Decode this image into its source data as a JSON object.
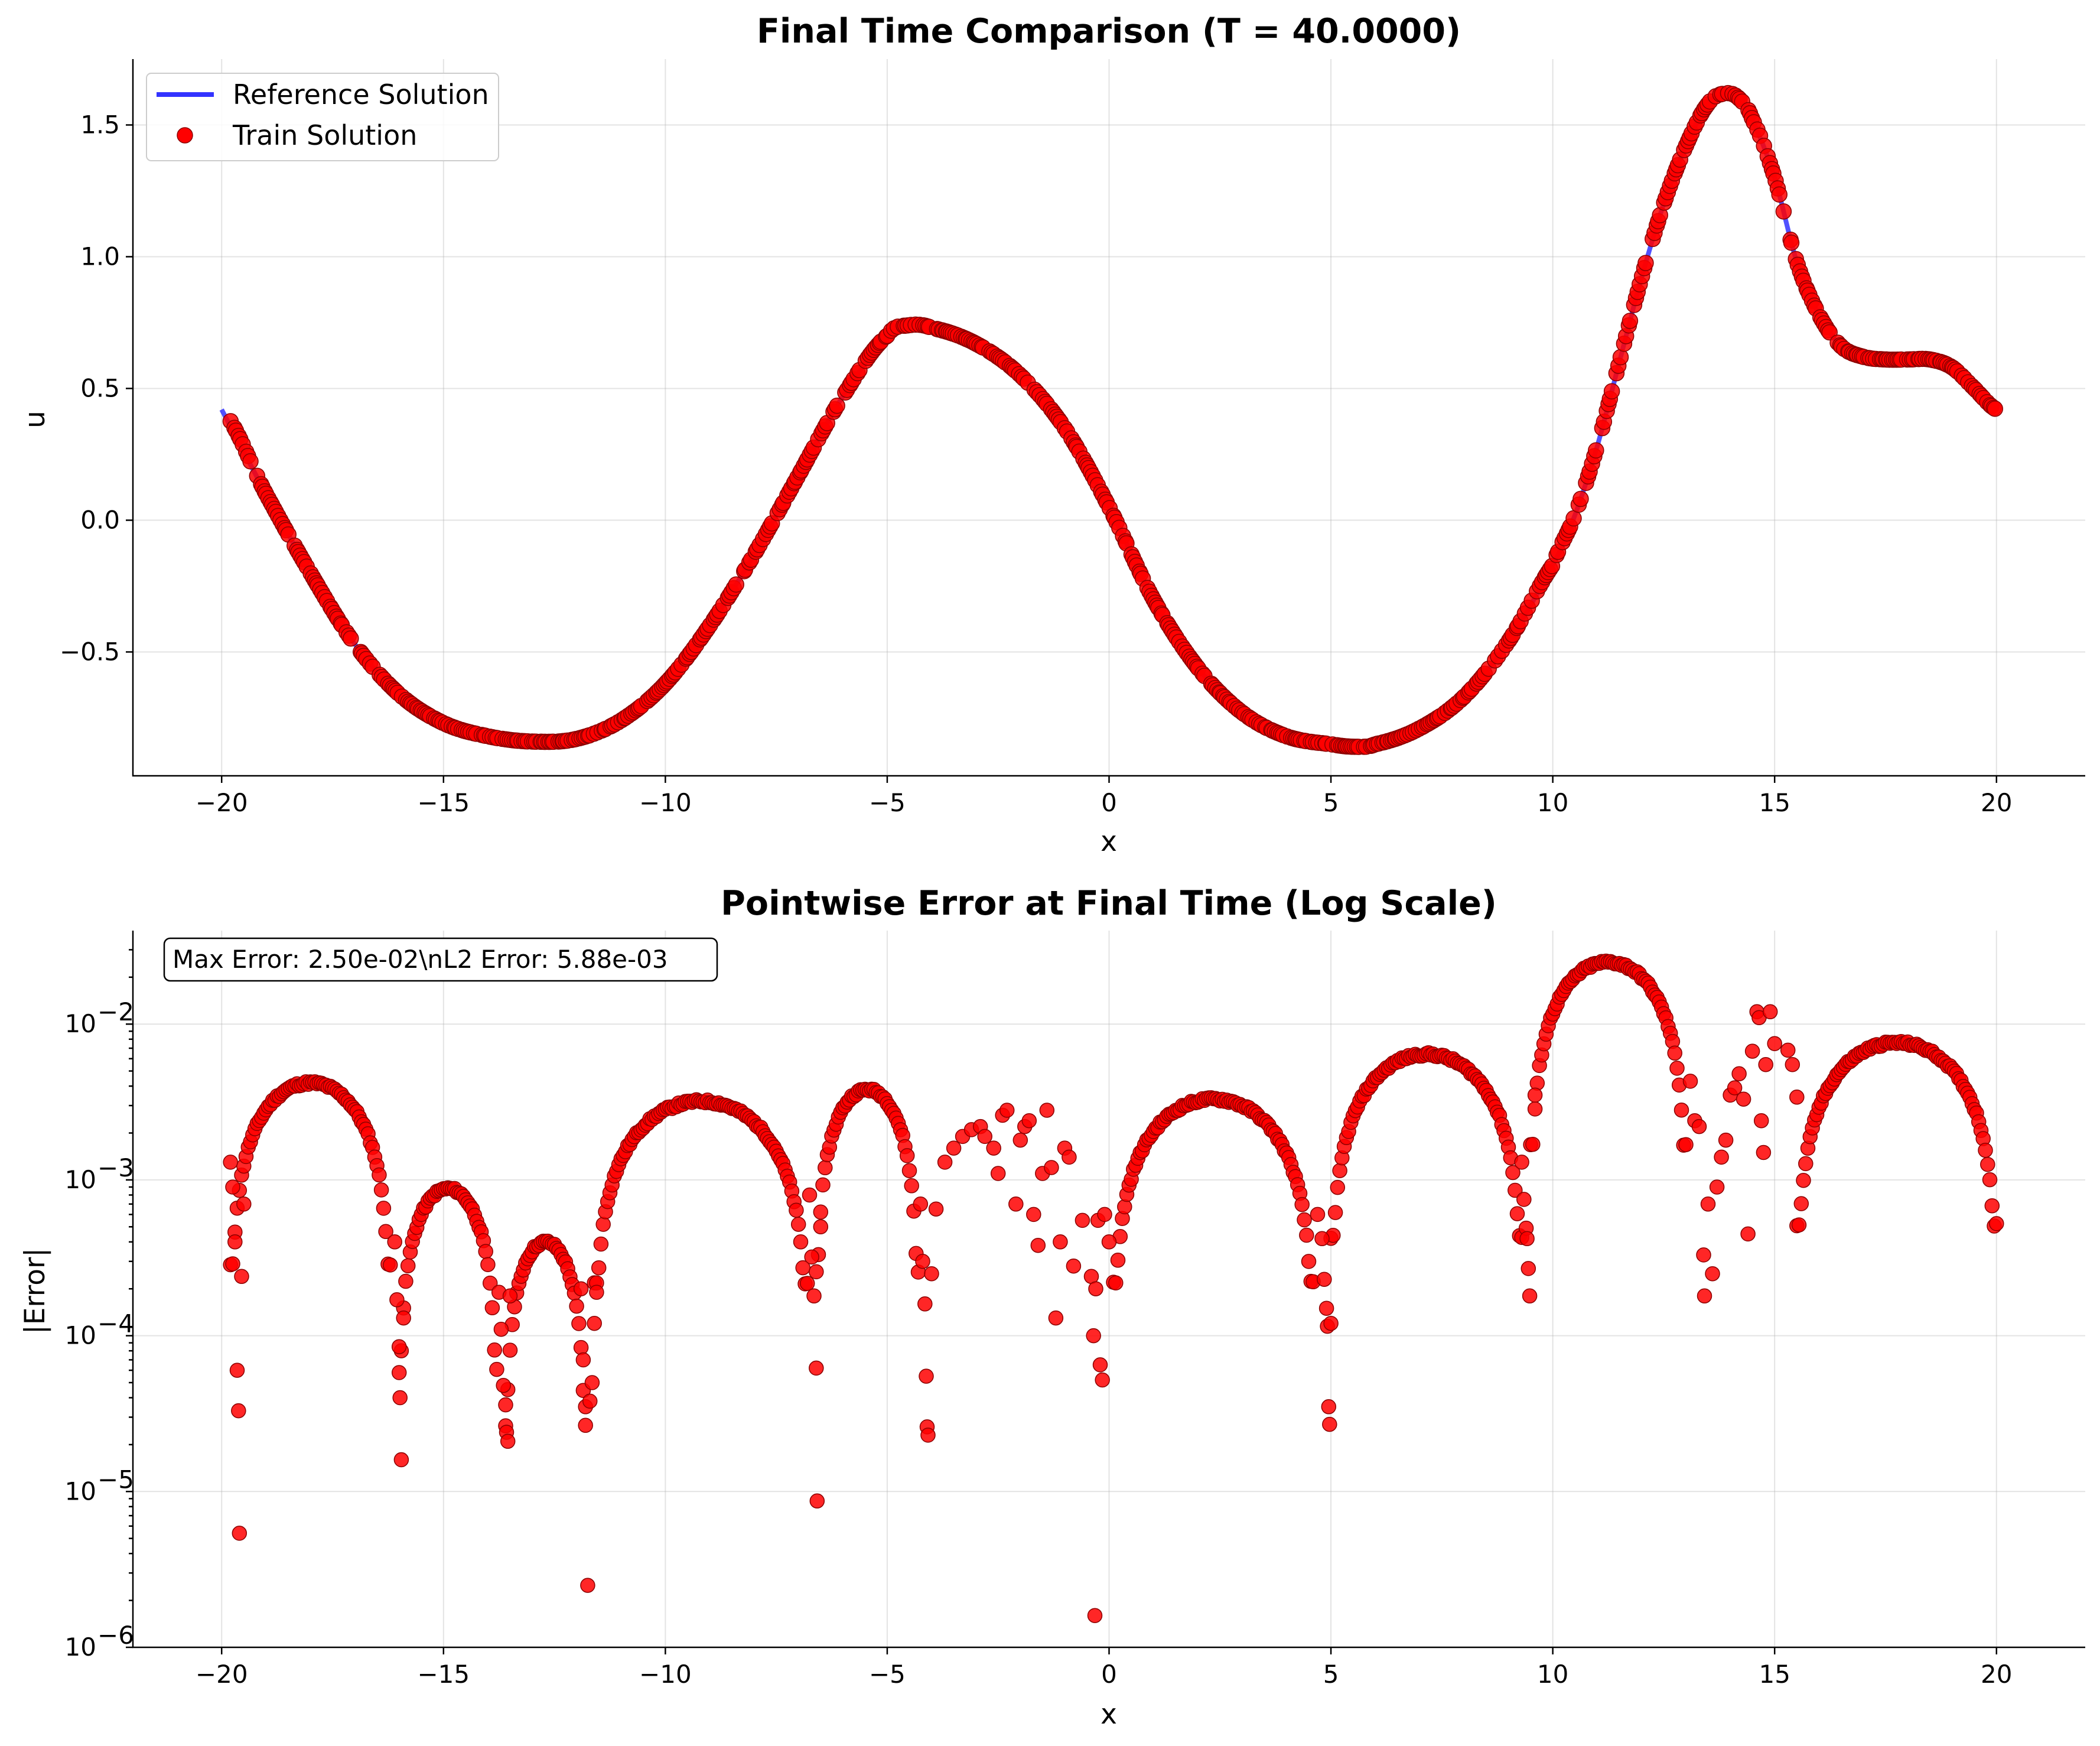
{
  "chart_data": [
    {
      "type": "line+scatter",
      "title": "Final Time Comparison (T = 40.0000)",
      "xlabel": "x",
      "ylabel": "u",
      "xlim": [
        -22,
        22
      ],
      "ylim": [
        -0.97,
        1.75
      ],
      "xticks": [
        -20,
        -15,
        -10,
        -5,
        0,
        5,
        10,
        15,
        20
      ],
      "xtick_labels": [
        "−20",
        "−15",
        "−10",
        "−5",
        "0",
        "5",
        "10",
        "15",
        "20"
      ],
      "yticks": [
        -0.5,
        0.0,
        0.5,
        1.0,
        1.5
      ],
      "ytick_labels": [
        "−0.5",
        "0.0",
        "0.5",
        "1.0",
        "1.5"
      ],
      "grid": true,
      "legend_position": "upper-left",
      "series": [
        {
          "name": "Reference Solution",
          "kind": "line",
          "color": "#3333ff",
          "x": [
            -20,
            -19,
            -18,
            -17,
            -16,
            -15,
            -14,
            -13,
            -12,
            -11,
            -10,
            -9,
            -8,
            -7,
            -6,
            -5,
            -4.5,
            -4,
            -3,
            -2,
            -1,
            0,
            1,
            2,
            3,
            4,
            5,
            5.6,
            6,
            7,
            8,
            9,
            10,
            10.5,
            11,
            11.5,
            12,
            12.5,
            13,
            13.5,
            13.9,
            14.2,
            14.5,
            15,
            15.5,
            16,
            16.5,
            17,
            17.5,
            18,
            18.5,
            19,
            19.5,
            20
          ],
          "y": [
            0.42,
            0.1,
            -0.2,
            -0.47,
            -0.66,
            -0.77,
            -0.82,
            -0.84,
            -0.83,
            -0.76,
            -0.62,
            -0.4,
            -0.13,
            0.17,
            0.47,
            0.7,
            0.74,
            0.73,
            0.67,
            0.55,
            0.35,
            0.05,
            -0.3,
            -0.56,
            -0.73,
            -0.82,
            -0.85,
            -0.86,
            -0.85,
            -0.79,
            -0.67,
            -0.46,
            -0.17,
            0.02,
            0.28,
            0.6,
            0.92,
            1.2,
            1.42,
            1.58,
            1.62,
            1.6,
            1.52,
            1.3,
            0.98,
            0.78,
            0.66,
            0.62,
            0.61,
            0.61,
            0.61,
            0.58,
            0.5,
            0.42
          ]
        },
        {
          "name": "Train Solution",
          "kind": "scatter",
          "color": "#ff0000",
          "x_range": [
            -19.8,
            20
          ],
          "follows": "Reference Solution"
        }
      ]
    },
    {
      "type": "scatter",
      "title": "Pointwise Error at Final Time (Log Scale)",
      "xlabel": "x",
      "ylabel": "|Error|",
      "yscale": "log",
      "xlim": [
        -22,
        22
      ],
      "ylim_log10": [
        -6,
        -1.4
      ],
      "xticks": [
        -20,
        -15,
        -10,
        -5,
        0,
        5,
        10,
        15,
        20
      ],
      "xtick_labels": [
        "−20",
        "−15",
        "−10",
        "−5",
        "0",
        "5",
        "10",
        "15",
        "20"
      ],
      "yticks_log10": [
        -6,
        -5,
        -4,
        -3,
        -2
      ],
      "ytick_exponents": [
        "−6",
        "−5",
        "−4",
        "−3",
        "−2"
      ],
      "ytick_base": "10",
      "grid": true,
      "annotation": "Max Error: 2.50e-02\\nL2 Error: 5.88e-03",
      "series": [
        {
          "name": "|Error|",
          "kind": "scatter",
          "color": "#ff0000",
          "arches": [
            {
              "x0": -19.8,
              "x1": -16.2,
              "peak": 0.0042
            },
            {
              "x0": -16.0,
              "x1": -13.8,
              "peak": 0.00088
            },
            {
              "x0": -13.6,
              "x1": -11.8,
              "peak": 0.0004
            },
            {
              "x0": -11.6,
              "x1": -6.8,
              "peak": 0.0032
            },
            {
              "x0": -6.6,
              "x1": -4.3,
              "peak": 0.0038
            },
            {
              "x0": 0.1,
              "x1": 4.6,
              "peak": 0.0033
            },
            {
              "x0": 5.0,
              "x1": 9.3,
              "peak": 0.0064
            },
            {
              "x0": 9.5,
              "x1": 13.0,
              "peak": 0.025
            },
            {
              "x0": 15.5,
              "x1": 20.0,
              "peak": 0.0076
            }
          ],
          "scattered_points": [
            [
              -19.8,
              0.0013
            ],
            [
              -19.75,
              0.0009
            ],
            [
              -19.7,
              0.0004
            ],
            [
              -19.65,
              6e-05
            ],
            [
              -19.62,
              3.3e-05
            ],
            [
              -19.6,
              5.4e-06
            ],
            [
              -19.55,
              0.00024
            ],
            [
              -19.5,
              0.0007
            ],
            [
              -16.1,
              0.0004
            ],
            [
              -16.05,
              0.00017
            ],
            [
              -16.0,
              8.5e-05
            ],
            [
              -15.98,
              4e-05
            ],
            [
              -15.95,
              1.6e-05
            ],
            [
              -15.9,
              0.00013
            ],
            [
              -13.75,
              0.00019
            ],
            [
              -13.7,
              0.00011
            ],
            [
              -13.65,
              4.8e-05
            ],
            [
              -13.6,
              3.6e-05
            ],
            [
              -13.58,
              2.4e-05
            ],
            [
              -13.55,
              2.1e-05
            ],
            [
              -13.5,
              0.00018
            ],
            [
              -11.9,
              0.0002
            ],
            [
              -11.85,
              7e-05
            ],
            [
              -11.8,
              3.5e-05
            ],
            [
              -11.75,
              2.5e-06
            ],
            [
              -11.7,
              3.8e-05
            ],
            [
              -11.65,
              5e-05
            ],
            [
              -11.6,
              0.00012
            ],
            [
              -11.55,
              0.00019
            ],
            [
              -6.75,
              0.0008
            ],
            [
              -6.7,
              0.00032
            ],
            [
              -6.65,
              0.00018
            ],
            [
              -6.6,
              6.2e-05
            ],
            [
              -6.58,
              8.7e-06
            ],
            [
              -6.5,
              0.0005
            ],
            [
              -4.25,
              0.0007
            ],
            [
              -4.2,
              0.0003
            ],
            [
              -4.15,
              0.00016
            ],
            [
              -4.12,
              5.5e-05
            ],
            [
              -4.1,
              2.6e-05
            ],
            [
              -4.08,
              2.3e-05
            ],
            [
              -4.0,
              0.00025
            ],
            [
              -3.9,
              0.00065
            ],
            [
              -3.7,
              0.0013
            ],
            [
              -3.5,
              0.0016
            ],
            [
              -3.3,
              0.0019
            ],
            [
              -3.1,
              0.0021
            ],
            [
              -2.9,
              0.0022
            ],
            [
              -2.8,
              0.0019
            ],
            [
              -2.6,
              0.0016
            ],
            [
              -2.5,
              0.0011
            ],
            [
              -2.4,
              0.0026
            ],
            [
              -2.3,
              0.0028
            ],
            [
              -2.1,
              0.0007
            ],
            [
              -2.0,
              0.0018
            ],
            [
              -1.9,
              0.0022
            ],
            [
              -1.8,
              0.0024
            ],
            [
              -1.7,
              0.0006
            ],
            [
              -1.6,
              0.00038
            ],
            [
              -1.5,
              0.0011
            ],
            [
              -1.4,
              0.0028
            ],
            [
              -1.3,
              0.0012
            ],
            [
              -1.2,
              0.00013
            ],
            [
              -1.1,
              0.0004
            ],
            [
              -1.0,
              0.0016
            ],
            [
              -0.9,
              0.0014
            ],
            [
              -0.8,
              0.00028
            ],
            [
              -0.6,
              0.00055
            ],
            [
              -0.4,
              0.00024
            ],
            [
              -0.35,
              0.0001
            ],
            [
              -0.32,
              1.6e-06
            ],
            [
              -0.3,
              0.0002
            ],
            [
              -0.25,
              0.00055
            ],
            [
              -0.2,
              6.5e-05
            ],
            [
              -0.15,
              5.2e-05
            ],
            [
              -0.1,
              0.0006
            ],
            [
              0.0,
              0.0004
            ],
            [
              4.7,
              0.0006
            ],
            [
              4.8,
              0.00042
            ],
            [
              4.85,
              0.00023
            ],
            [
              4.9,
              0.00015
            ],
            [
              4.92,
              0.000115
            ],
            [
              4.95,
              3.5e-05
            ],
            [
              4.97,
              2.7e-05
            ],
            [
              5.0,
              0.00012
            ],
            [
              9.3,
              0.0013
            ],
            [
              9.35,
              0.00075
            ],
            [
              9.4,
              0.00049
            ],
            [
              9.42,
              0.00042
            ],
            [
              9.45,
              0.00027
            ],
            [
              9.48,
              0.00018
            ],
            [
              9.6,
              0.0035
            ],
            [
              13.1,
              0.0043
            ],
            [
              13.2,
              0.0024
            ],
            [
              13.3,
              0.0022
            ],
            [
              13.4,
              0.00033
            ],
            [
              13.42,
              0.00018
            ],
            [
              13.5,
              0.0007
            ],
            [
              13.6,
              0.00025
            ],
            [
              13.7,
              0.0009
            ],
            [
              13.8,
              0.0014
            ],
            [
              13.9,
              0.0018
            ],
            [
              14.0,
              0.0035
            ],
            [
              14.1,
              0.0039
            ],
            [
              14.2,
              0.0048
            ],
            [
              14.3,
              0.0033
            ],
            [
              14.4,
              0.00045
            ],
            [
              14.5,
              0.0067
            ],
            [
              14.6,
              0.012
            ],
            [
              14.65,
              0.011
            ],
            [
              14.7,
              0.0024
            ],
            [
              14.75,
              0.0015
            ],
            [
              14.8,
              0.0055
            ],
            [
              14.9,
              0.012
            ],
            [
              15.0,
              0.0075
            ],
            [
              15.3,
              0.0068
            ],
            [
              15.4,
              0.0055
            ],
            [
              15.5,
              0.0034
            ]
          ]
        }
      ]
    }
  ]
}
